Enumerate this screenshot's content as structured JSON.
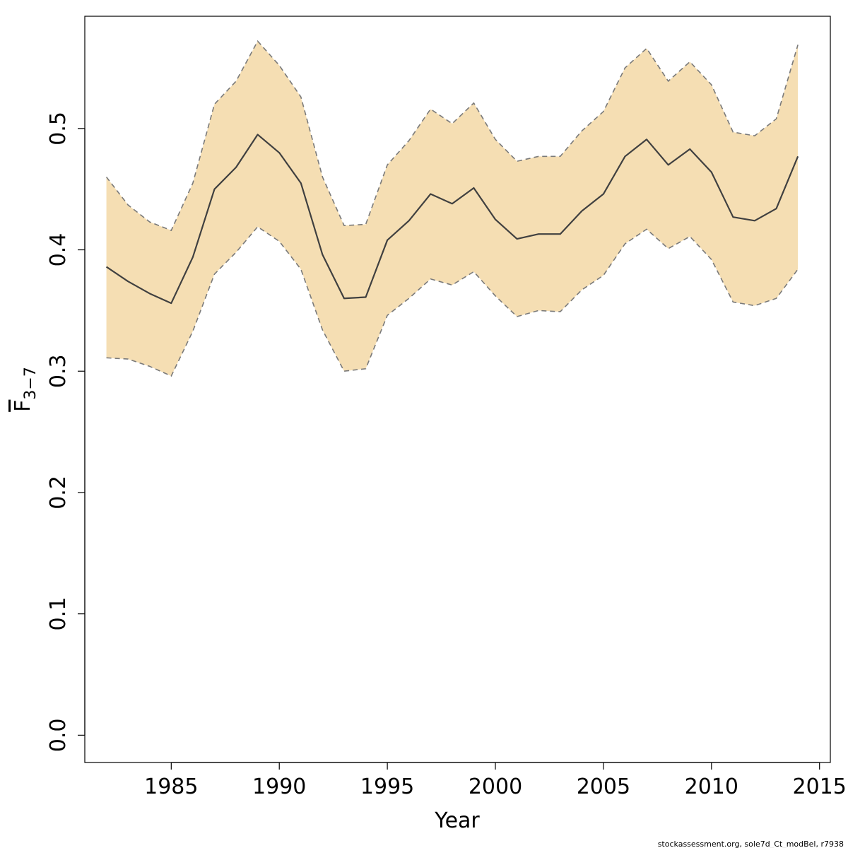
{
  "chart_data": {
    "type": "area",
    "xlabel": "Year",
    "ylabel": {
      "main": "F",
      "subscript": "3−7"
    },
    "xlim": [
      1981.0,
      2015.5
    ],
    "ylim": [
      -0.0225,
      0.5925
    ],
    "x_ticks": [
      1985,
      1990,
      1995,
      2000,
      2005,
      2010,
      2015
    ],
    "y_ticks": [
      0.0,
      0.1,
      0.2,
      0.3,
      0.4,
      0.5
    ],
    "x_tick_labels": [
      "1985",
      "1990",
      "1995",
      "2000",
      "2005",
      "2010",
      "2015"
    ],
    "y_tick_labels": [
      "0.0",
      "0.1",
      "0.2",
      "0.3",
      "0.4",
      "0.5"
    ],
    "grid": false,
    "legend": false,
    "x": [
      1982,
      1983,
      1984,
      1985,
      1986,
      1987,
      1988,
      1989,
      1990,
      1991,
      1992,
      1993,
      1994,
      1995,
      1996,
      1997,
      1998,
      1999,
      2000,
      2001,
      2002,
      2003,
      2004,
      2005,
      2006,
      2007,
      2008,
      2009,
      2010,
      2011,
      2012,
      2013,
      2014
    ],
    "series": [
      {
        "role": "estimate",
        "values": [
          0.386,
          0.374,
          0.364,
          0.356,
          0.394,
          0.45,
          0.468,
          0.495,
          0.48,
          0.455,
          0.396,
          0.36,
          0.361,
          0.408,
          0.424,
          0.446,
          0.438,
          0.451,
          0.425,
          0.409,
          0.413,
          0.413,
          0.432,
          0.446,
          0.477,
          0.491,
          0.47,
          0.483,
          0.464,
          0.427,
          0.424,
          0.434,
          0.477
        ]
      },
      {
        "role": "upper_bound",
        "values": [
          0.46,
          0.437,
          0.423,
          0.416,
          0.455,
          0.52,
          0.539,
          0.572,
          0.552,
          0.526,
          0.46,
          0.42,
          0.421,
          0.47,
          0.49,
          0.516,
          0.504,
          0.521,
          0.491,
          0.473,
          0.477,
          0.477,
          0.498,
          0.514,
          0.55,
          0.566,
          0.539,
          0.555,
          0.536,
          0.497,
          0.494,
          0.508,
          0.569
        ]
      },
      {
        "role": "lower_bound",
        "values": [
          0.311,
          0.31,
          0.304,
          0.296,
          0.333,
          0.38,
          0.398,
          0.419,
          0.407,
          0.384,
          0.334,
          0.3,
          0.302,
          0.346,
          0.36,
          0.376,
          0.371,
          0.382,
          0.362,
          0.345,
          0.35,
          0.349,
          0.367,
          0.379,
          0.405,
          0.417,
          0.401,
          0.411,
          0.392,
          0.357,
          0.354,
          0.36,
          0.384
        ]
      }
    ],
    "colors": {
      "band_fill": "#f5deb3",
      "bound_line": "#7a7a7a",
      "estimate_line": "#404040",
      "axis": "#000000"
    }
  },
  "footer_text": "stockassessment.org, sole7d_Ct_modBel, r7938"
}
